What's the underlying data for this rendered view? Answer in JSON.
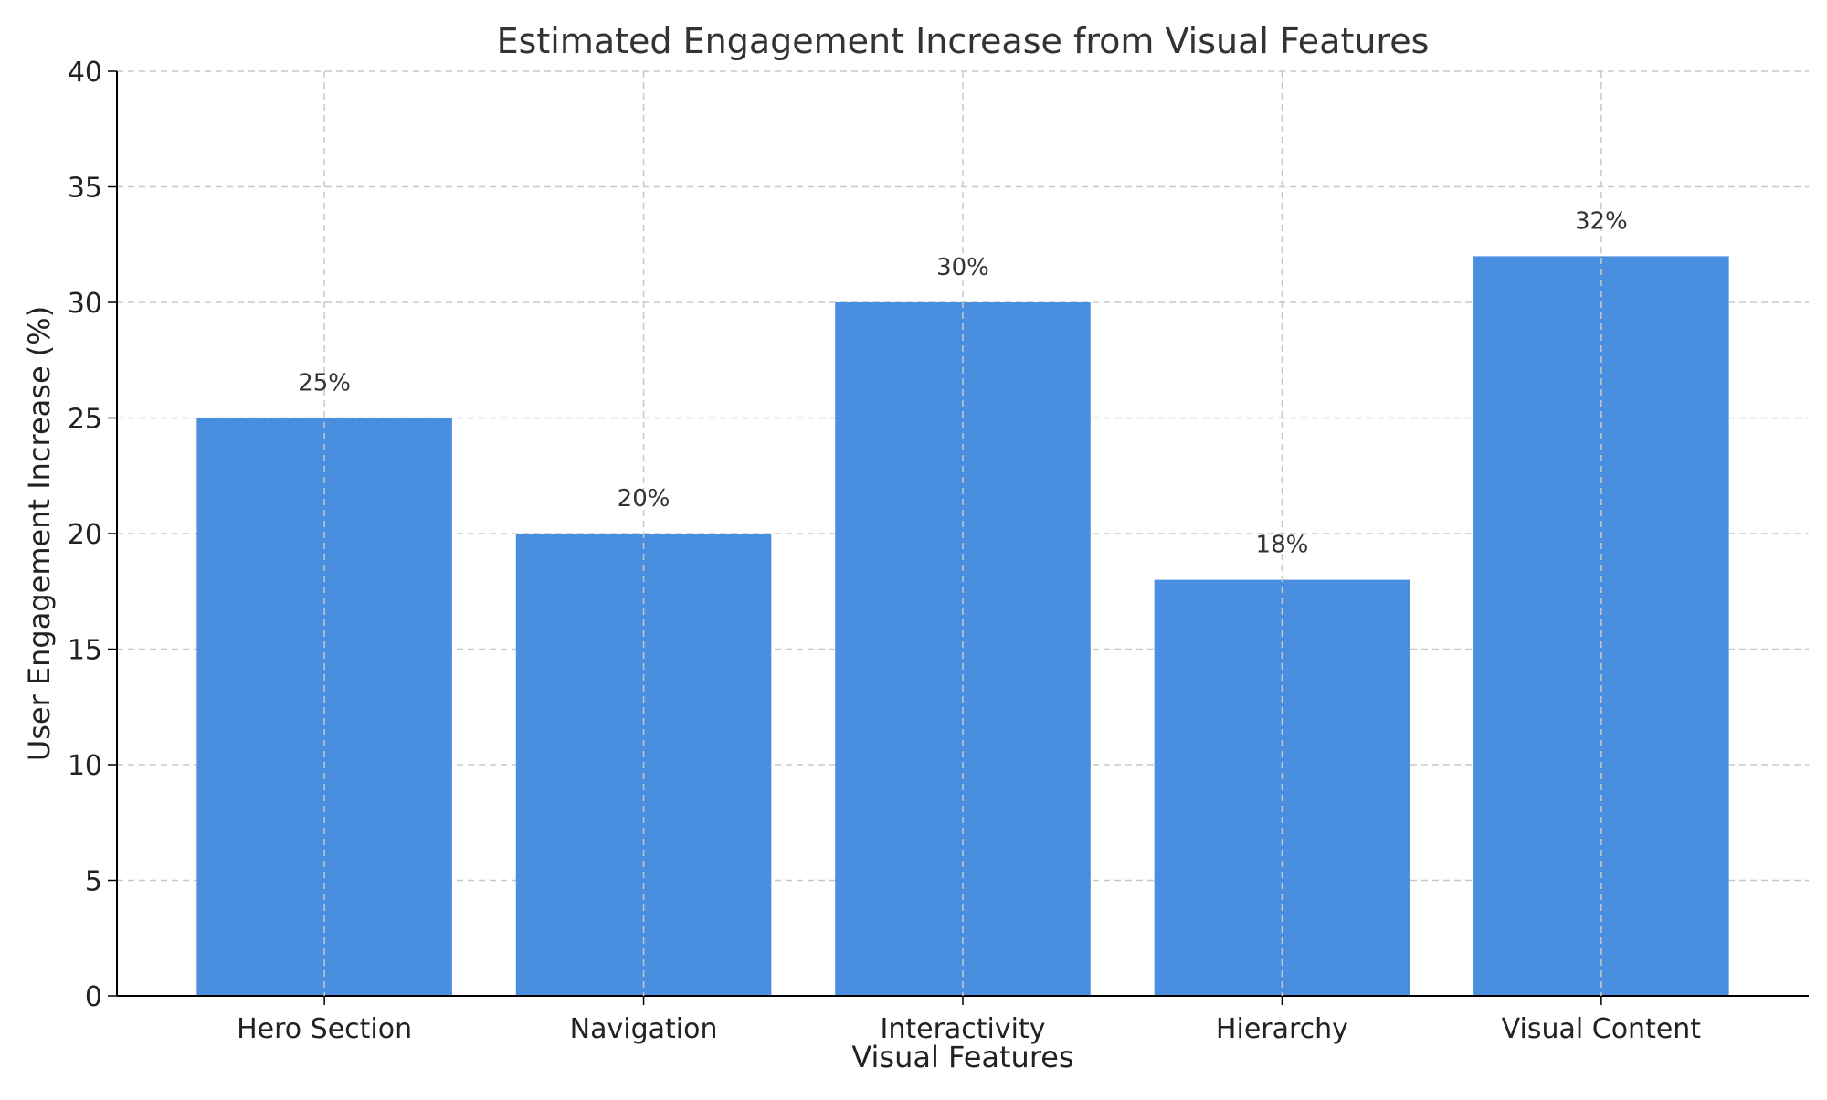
{
  "chart_data": {
    "type": "bar",
    "title": "Estimated Engagement Increase from Visual Features",
    "xlabel": "Visual Features",
    "ylabel": "User Engagement Increase (%)",
    "categories": [
      "Hero Section",
      "Navigation",
      "Interactivity",
      "Hierarchy",
      "Visual Content"
    ],
    "values": [
      25,
      20,
      30,
      18,
      32
    ],
    "value_labels": [
      "25%",
      "20%",
      "30%",
      "18%",
      "32%"
    ],
    "ylim": [
      0,
      40
    ],
    "yticks": [
      0,
      5,
      10,
      15,
      20,
      25,
      30,
      35,
      40
    ],
    "bar_color": "#4a8ee0",
    "grid": true
  }
}
